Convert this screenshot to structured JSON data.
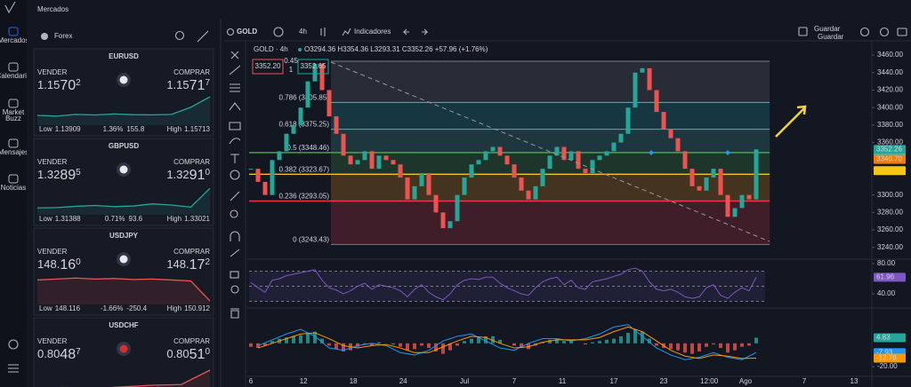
{
  "sidebar": {
    "items": [
      {
        "lines": [
          "Mercados"
        ]
      },
      {
        "lines": [
          "Calendario"
        ]
      },
      {
        "lines": [
          "Market",
          "Buzz"
        ]
      },
      {
        "lines": [
          "Mensajes"
        ]
      },
      {
        "lines": [
          "Noticias"
        ]
      }
    ]
  },
  "header": {
    "title": "Mercados"
  },
  "watchlist": {
    "group": "Forex",
    "instruments": [
      {
        "symbol": "EURUSD",
        "sell_label": "VENDER",
        "buy_label": "COMPRAR",
        "sell": [
          "1.15",
          "70",
          "2"
        ],
        "buy": [
          "1.15",
          "71",
          "7"
        ],
        "sell_color": "#ef5350",
        "buy_color": "#26a69a",
        "low_label": "Low",
        "low": 1.13909,
        "high_label": "High",
        "high": 1.15713,
        "change": "1.36%",
        "pips": "155.8",
        "change_color": "#26a69a",
        "spark": [
          1.1445,
          1.144,
          1.1452,
          1.1448,
          1.1455,
          1.145,
          1.1449,
          1.1452,
          1.15,
          1.1571
        ],
        "spark_color": "#26a69a"
      },
      {
        "symbol": "GBPUSD",
        "sell_label": "VENDER",
        "buy_label": "COMPRAR",
        "sell": [
          "1.32",
          "89",
          "5"
        ],
        "buy": [
          "1.32",
          "91",
          "0"
        ],
        "sell_color": "#26a69a",
        "buy_color": "#ef5350",
        "low_label": "Low",
        "low": 1.31388,
        "high_label": "High",
        "high": 1.33021,
        "change": "0.71%",
        "pips": "93.6",
        "change_color": "#26a69a",
        "spark": [
          1.317,
          1.3172,
          1.318,
          1.3185,
          1.3178,
          1.3182,
          1.3195,
          1.3188,
          1.3175,
          1.329
        ],
        "spark_color": "#26a69a"
      },
      {
        "symbol": "USDJPY",
        "sell_label": "VENDER",
        "buy_label": "COMPRAR",
        "sell": [
          "148.",
          "16",
          "0"
        ],
        "buy": [
          "148.",
          "17",
          "2"
        ],
        "sell_color": "#26a69a",
        "buy_color": "#ef5350",
        "low_label": "Low",
        "low": 148.116,
        "high_label": "High",
        "high": 150.912,
        "change": "-1.66%",
        "pips": "-250.4",
        "change_color": "#ef5350",
        "spark": [
          150.5,
          150.6,
          150.7,
          150.6,
          150.65,
          150.55,
          150.6,
          150.5,
          150.4,
          148.3
        ],
        "spark_color": "#ef5350"
      },
      {
        "symbol": "USDCHF",
        "sell_label": "VENDER",
        "buy_label": "COMPRAR",
        "sell": [
          "0.80",
          "48",
          "7"
        ],
        "buy": [
          "0.80",
          "51",
          "0"
        ],
        "sell_color": "#26a69a",
        "buy_color": "#26a69a",
        "spark": [
          0.796,
          0.7962,
          0.7958,
          0.7965,
          0.7972,
          0.7975,
          0.804
        ],
        "spark_ylim": [
          0.794,
          0.806
        ],
        "spark_color": "#ef5350"
      }
    ]
  },
  "toolbar": {
    "symbol": "GOLD",
    "interval": "4h",
    "indicators": "Indicadores",
    "save": "Guardar",
    "save_sub": "Guardar"
  },
  "chart_data": [
    {
      "type": "candlestick",
      "title": "GOLD · 4h",
      "ohlc": "O3294.36 H3354.36 L3293.31 C3352.26 +57.96 (+1.76%)",
      "sell_price": "3352.20",
      "spread": "0.45",
      "qty": "1",
      "buy_price": "3352.65",
      "closes": [
        3330,
        3315,
        3300,
        3340,
        3350,
        3370,
        3380,
        3400,
        3430,
        3450,
        3420,
        3390,
        3370,
        3345,
        3335,
        3340,
        3350,
        3330,
        3345,
        3340,
        3335,
        3320,
        3295,
        3310,
        3325,
        3300,
        3280,
        3262,
        3270,
        3300,
        3320,
        3335,
        3340,
        3350,
        3355,
        3345,
        3335,
        3320,
        3305,
        3295,
        3310,
        3330,
        3345,
        3355,
        3340,
        3350,
        3330,
        3325,
        3340,
        3345,
        3350,
        3360,
        3370,
        3400,
        3440,
        3445,
        3420,
        3395,
        3375,
        3365,
        3350,
        3330,
        3310,
        3305,
        3320,
        3330,
        3300,
        3275,
        3285,
        3300,
        3295,
        3352.26
      ],
      "up_color": "#26a69a",
      "down_color": "#ef5350",
      "xlim": [
        -0.25,
        87.25
      ],
      "ylim": [
        3230.6,
        3472.3
      ],
      "yticks": [
        {
          "value": 3460,
          "label": "3460.00"
        },
        {
          "value": 3440,
          "label": "3440.00"
        },
        {
          "value": 3420,
          "label": "3420.00"
        },
        {
          "value": 3400,
          "label": "3400.00"
        },
        {
          "value": 3380,
          "label": "3380.00"
        },
        {
          "value": 3360,
          "label": "3360.00"
        },
        {
          "value": 3300,
          "label": "3300.00"
        },
        {
          "value": 3280,
          "label": "3280.00"
        },
        {
          "value": 3260,
          "label": "3260.00"
        },
        {
          "value": 3240,
          "label": "3240.00"
        }
      ],
      "xticks": [
        {
          "value": 0,
          "label": "6"
        },
        {
          "value": 7.4,
          "label": "12"
        },
        {
          "value": 14.4,
          "label": "18"
        },
        {
          "value": 21.4,
          "label": "24"
        },
        {
          "value": 30,
          "label": "Jul"
        },
        {
          "value": 37,
          "label": "7"
        },
        {
          "value": 43.75,
          "label": "11"
        },
        {
          "value": 51,
          "label": "17"
        },
        {
          "value": 58,
          "label": "23"
        },
        {
          "value": 64.4,
          "label": "12:00"
        },
        {
          "value": 69.5,
          "label": "Ago"
        },
        {
          "value": 77.75,
          "label": "7"
        },
        {
          "value": 84.75,
          "label": "13"
        }
      ],
      "fib_x": [
        11.25,
        72.9
      ],
      "fib": [
        {
          "value": 3453,
          "color": "#787b86",
          "fill": "rgba(120,123,134,0.22)"
        },
        {
          "label": "0.786 (3405.85)",
          "value": 3405.85,
          "color": "#26c6da",
          "fill": "rgba(38,198,218,0.18)"
        },
        {
          "label": "0.618 (3375.25)",
          "value": 3375.25,
          "color": "#4db6ac",
          "fill": "rgba(77,182,172,0.2)"
        },
        {
          "label": "0.5 (3348.46)",
          "value": 3348.46,
          "color": "#4caf50",
          "fill": "rgba(76,175,80,0.2)"
        },
        {
          "label": "0.382 (3323.67)",
          "value": 3323.67,
          "color": "#f5c518",
          "fill": "rgba(245,160,24,0.22)"
        },
        {
          "label": "0.236 (3293.05)",
          "value": 3293.05,
          "color": "#f23645",
          "fill": "rgba(242,54,69,0.2)"
        },
        {
          "label": "0 (3243.43)",
          "value": 3243.43,
          "color": "#787b86"
        }
      ],
      "badges": [
        {
          "value": 3348.87,
          "color": "#4db6ac"
        },
        {
          "value": 3340.7,
          "label": "3340.70",
          "color": "#f57c00"
        },
        {
          "value": 3327.89,
          "color": "#f5c518"
        }
      ]
    },
    {
      "type": "line",
      "values": [
        55,
        48,
        42,
        58,
        60,
        64,
        66,
        68,
        70,
        72,
        58,
        48,
        45,
        40,
        44,
        50,
        54,
        46,
        52,
        50,
        48,
        44,
        36,
        46,
        52,
        42,
        36,
        32,
        40,
        52,
        58,
        60,
        59,
        62,
        62,
        54,
        48,
        44,
        40,
        38,
        48,
        56,
        60,
        62,
        52,
        58,
        48,
        46,
        56,
        58,
        60,
        63,
        66,
        72,
        74,
        70,
        56,
        46,
        44,
        46,
        42,
        36,
        34,
        36,
        48,
        52,
        38,
        34,
        42,
        48,
        44,
        61.96
      ],
      "color": "#7e57c2",
      "xlim": [
        -0.25,
        87.25
      ],
      "ylim": [
        23.5,
        81.2
      ],
      "yticks": [
        {
          "value": 80,
          "label": "80.00"
        },
        {
          "value": 40,
          "label": "40.00"
        }
      ],
      "levels": [
        70,
        50,
        30
      ]
    },
    {
      "type": "macd",
      "histogram": [
        -3,
        -4,
        -2,
        2,
        4,
        5,
        6,
        7,
        9,
        10,
        4,
        -2,
        -5,
        -7,
        -6,
        -3,
        -1,
        -2,
        1,
        0,
        -1,
        -3,
        -6,
        -5,
        -2,
        -4,
        -7,
        -9,
        -6,
        -2,
        2,
        4,
        5,
        6,
        6,
        3,
        0,
        -2,
        -4,
        -5,
        -2,
        1,
        3,
        4,
        2,
        3,
        0,
        -1,
        1,
        2,
        3,
        4,
        6,
        9,
        12,
        10,
        4,
        -2,
        -4,
        -5,
        -6,
        -8,
        -9,
        -7,
        -3,
        -1,
        -4,
        -8,
        -6,
        -3,
        -2,
        4.83
      ],
      "up_color": "#26a69a",
      "down_color": "#ef5350",
      "x": [
        1,
        3,
        5,
        7,
        9,
        11,
        13,
        15,
        17,
        19,
        21,
        23,
        25,
        27,
        29,
        31,
        33,
        35,
        37,
        39,
        41,
        43,
        45,
        47,
        49,
        51,
        53,
        55,
        57,
        59,
        61,
        63,
        65,
        67,
        69,
        71
      ],
      "series": [
        {
          "color": "#2196f3",
          "values": [
            -2,
            3,
            8,
            12,
            6,
            -4,
            -6,
            -2,
            0,
            -2,
            -8,
            -10,
            -6,
            2,
            6,
            8,
            2,
            -4,
            -6,
            0,
            4,
            4,
            2,
            4,
            8,
            14,
            16,
            6,
            -4,
            -10,
            -14,
            -12,
            -8,
            -12,
            -14,
            -7.93
          ]
        },
        {
          "color": "#ff9800",
          "values": [
            -4,
            0,
            4,
            8,
            9,
            4,
            -2,
            -4,
            -2,
            -1,
            -4,
            -8,
            -8,
            -3,
            2,
            6,
            5,
            0,
            -4,
            -3,
            1,
            3,
            3,
            3,
            5,
            10,
            14,
            10,
            2,
            -6,
            -11,
            -13,
            -10,
            -11,
            -13,
            -12.76
          ]
        }
      ],
      "xlim": [
        -0.25,
        87.25
      ],
      "ylim": [
        -26.8,
        28
      ],
      "yticks": [
        {
          "value": -20,
          "label": "-20.00"
        }
      ]
    }
  ]
}
